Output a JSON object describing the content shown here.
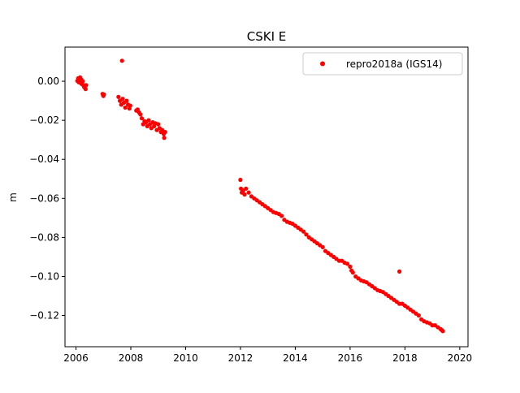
{
  "chart_data": {
    "type": "scatter",
    "title": "CSKI E",
    "xlabel": "",
    "ylabel": "m",
    "xlim": [
      2005.6,
      2020.3
    ],
    "ylim": [
      -0.136,
      0.0175
    ],
    "xticks": [
      2006,
      2008,
      2010,
      2012,
      2014,
      2016,
      2018,
      2020
    ],
    "xtick_labels": [
      "2006",
      "2008",
      "2010",
      "2012",
      "2014",
      "2016",
      "2018",
      "2020"
    ],
    "yticks": [
      0.0,
      -0.02,
      -0.04,
      -0.06,
      -0.08,
      -0.1,
      -0.12
    ],
    "ytick_labels": [
      "0.00",
      "−0.02",
      "−0.04",
      "−0.06",
      "−0.08",
      "−0.10",
      "−0.12"
    ],
    "grid": false,
    "legend_position": "top-right",
    "series": [
      {
        "name": "repro2018a (IGS14)",
        "color": "#ff0000",
        "marker": "circle",
        "points": [
          [
            2006.05,
            0.0002
          ],
          [
            2006.08,
            0.0015
          ],
          [
            2006.1,
            -0.0005
          ],
          [
            2006.13,
            0.001
          ],
          [
            2006.15,
            0.002
          ],
          [
            2006.18,
            -0.001
          ],
          [
            2006.2,
            0.0008
          ],
          [
            2006.22,
            -0.0015
          ],
          [
            2006.25,
            0.0
          ],
          [
            2006.27,
            -0.002
          ],
          [
            2006.3,
            -0.003
          ],
          [
            2006.32,
            -0.0025
          ],
          [
            2006.35,
            -0.004
          ],
          [
            2006.37,
            -0.002
          ],
          [
            2006.97,
            -0.0065
          ],
          [
            2007.0,
            -0.0075
          ],
          [
            2007.02,
            -0.0068
          ],
          [
            2007.68,
            0.0105
          ],
          [
            2007.55,
            -0.008
          ],
          [
            2007.6,
            -0.01
          ],
          [
            2007.65,
            -0.012
          ],
          [
            2007.7,
            -0.009
          ],
          [
            2007.75,
            -0.011
          ],
          [
            2007.8,
            -0.0135
          ],
          [
            2007.85,
            -0.01
          ],
          [
            2007.9,
            -0.012
          ],
          [
            2007.95,
            -0.014
          ],
          [
            2007.98,
            -0.0125
          ],
          [
            2008.2,
            -0.015
          ],
          [
            2008.25,
            -0.0145
          ],
          [
            2008.3,
            -0.016
          ],
          [
            2008.35,
            -0.017
          ],
          [
            2008.4,
            -0.019
          ],
          [
            2008.45,
            -0.022
          ],
          [
            2008.5,
            -0.0205
          ],
          [
            2008.55,
            -0.021
          ],
          [
            2008.6,
            -0.023
          ],
          [
            2008.65,
            -0.02
          ],
          [
            2008.7,
            -0.022
          ],
          [
            2008.75,
            -0.024
          ],
          [
            2008.8,
            -0.021
          ],
          [
            2008.85,
            -0.023
          ],
          [
            2008.9,
            -0.0215
          ],
          [
            2008.95,
            -0.025
          ],
          [
            2009.0,
            -0.022
          ],
          [
            2009.05,
            -0.024
          ],
          [
            2009.1,
            -0.026
          ],
          [
            2009.15,
            -0.025
          ],
          [
            2009.2,
            -0.027
          ],
          [
            2009.22,
            -0.029
          ],
          [
            2009.25,
            -0.026
          ],
          [
            2012.0,
            -0.0505
          ],
          [
            2012.02,
            -0.055
          ],
          [
            2012.05,
            -0.057
          ],
          [
            2012.1,
            -0.056
          ],
          [
            2012.15,
            -0.058
          ],
          [
            2012.2,
            -0.055
          ],
          [
            2012.3,
            -0.057
          ],
          [
            2012.4,
            -0.059
          ],
          [
            2012.5,
            -0.06
          ],
          [
            2012.6,
            -0.061
          ],
          [
            2012.7,
            -0.062
          ],
          [
            2012.8,
            -0.063
          ],
          [
            2012.9,
            -0.064
          ],
          [
            2013.0,
            -0.065
          ],
          [
            2013.1,
            -0.066
          ],
          [
            2013.2,
            -0.067
          ],
          [
            2013.3,
            -0.0675
          ],
          [
            2013.4,
            -0.068
          ],
          [
            2013.5,
            -0.069
          ],
          [
            2013.6,
            -0.071
          ],
          [
            2013.7,
            -0.072
          ],
          [
            2013.8,
            -0.0725
          ],
          [
            2013.9,
            -0.073
          ],
          [
            2014.0,
            -0.074
          ],
          [
            2014.1,
            -0.075
          ],
          [
            2014.2,
            -0.076
          ],
          [
            2014.3,
            -0.077
          ],
          [
            2014.4,
            -0.0785
          ],
          [
            2014.5,
            -0.08
          ],
          [
            2014.6,
            -0.081
          ],
          [
            2014.7,
            -0.082
          ],
          [
            2014.8,
            -0.083
          ],
          [
            2014.9,
            -0.084
          ],
          [
            2015.0,
            -0.085
          ],
          [
            2015.1,
            -0.087
          ],
          [
            2015.2,
            -0.088
          ],
          [
            2015.3,
            -0.089
          ],
          [
            2015.4,
            -0.09
          ],
          [
            2015.5,
            -0.091
          ],
          [
            2015.6,
            -0.092
          ],
          [
            2015.7,
            -0.092
          ],
          [
            2015.8,
            -0.093
          ],
          [
            2015.9,
            -0.0935
          ],
          [
            2016.0,
            -0.095
          ],
          [
            2016.05,
            -0.097
          ],
          [
            2016.1,
            -0.098
          ],
          [
            2016.2,
            -0.1
          ],
          [
            2016.3,
            -0.101
          ],
          [
            2016.4,
            -0.102
          ],
          [
            2016.5,
            -0.1025
          ],
          [
            2016.6,
            -0.103
          ],
          [
            2016.7,
            -0.104
          ],
          [
            2016.8,
            -0.105
          ],
          [
            2016.9,
            -0.106
          ],
          [
            2017.0,
            -0.107
          ],
          [
            2017.1,
            -0.1075
          ],
          [
            2017.2,
            -0.108
          ],
          [
            2017.3,
            -0.109
          ],
          [
            2017.4,
            -0.11
          ],
          [
            2017.5,
            -0.111
          ],
          [
            2017.6,
            -0.112
          ],
          [
            2017.7,
            -0.113
          ],
          [
            2017.8,
            -0.114
          ],
          [
            2017.9,
            -0.114
          ],
          [
            2017.8,
            -0.0975
          ],
          [
            2018.0,
            -0.115
          ],
          [
            2018.1,
            -0.116
          ],
          [
            2018.2,
            -0.117
          ],
          [
            2018.3,
            -0.118
          ],
          [
            2018.4,
            -0.119
          ],
          [
            2018.5,
            -0.12
          ],
          [
            2018.6,
            -0.122
          ],
          [
            2018.7,
            -0.123
          ],
          [
            2018.8,
            -0.1235
          ],
          [
            2018.9,
            -0.124
          ],
          [
            2019.0,
            -0.125
          ],
          [
            2019.1,
            -0.125
          ],
          [
            2019.2,
            -0.126
          ],
          [
            2019.3,
            -0.127
          ],
          [
            2019.35,
            -0.1275
          ],
          [
            2019.38,
            -0.128
          ]
        ]
      }
    ]
  }
}
